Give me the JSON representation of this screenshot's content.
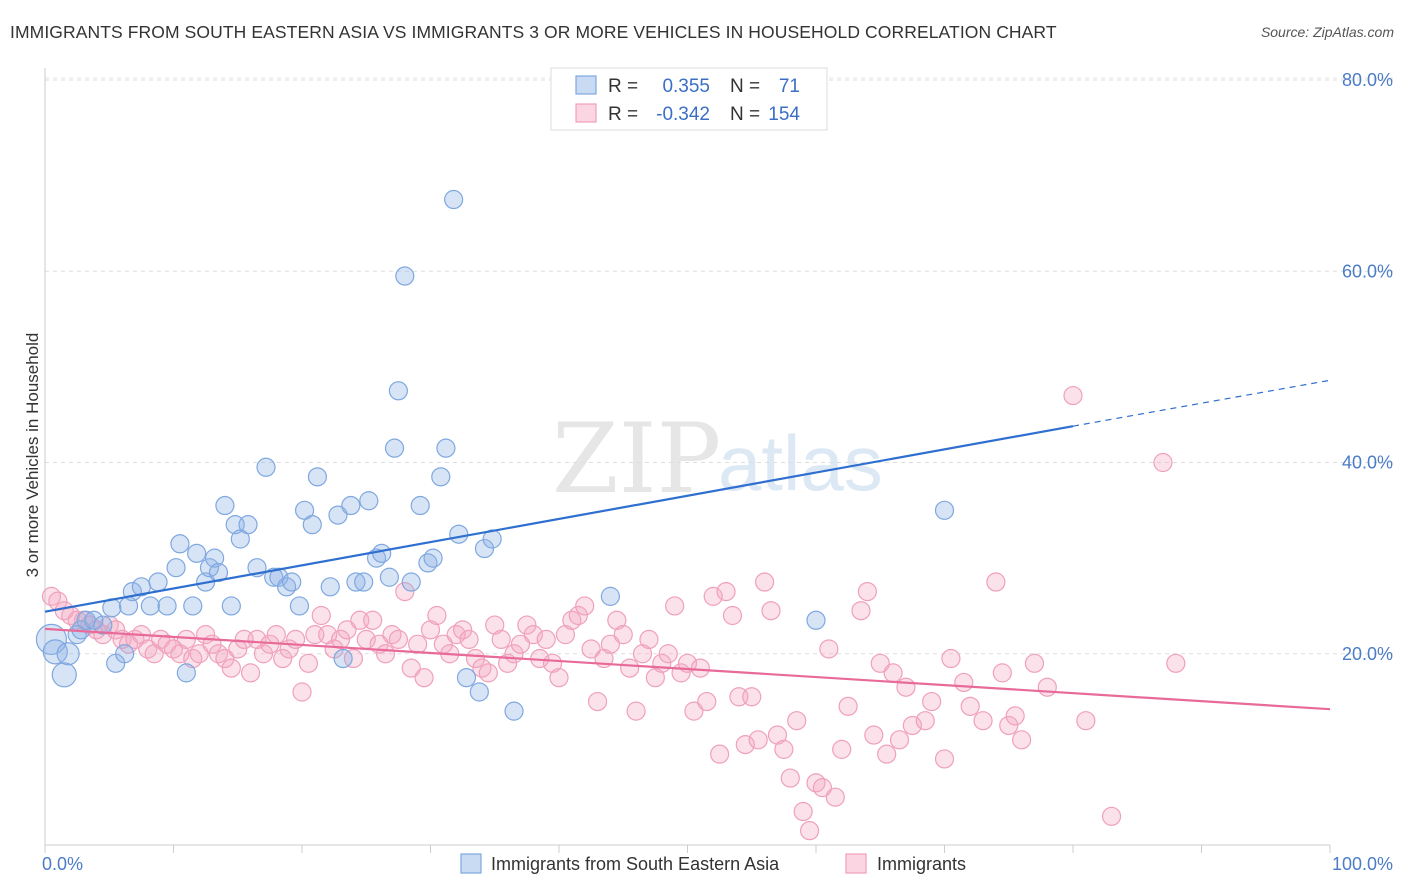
{
  "title": "IMMIGRANTS FROM SOUTH EASTERN ASIA VS IMMIGRANTS 3 OR MORE VEHICLES IN HOUSEHOLD CORRELATION CHART",
  "source": "Source: ZipAtlas.com",
  "watermark": {
    "zip": "ZIP",
    "atlas": "atlas"
  },
  "legend_top": {
    "r_label": "R =",
    "n_label": "N =",
    "rows": [
      {
        "r": "0.355",
        "n": "71",
        "color": "#7fa8e0"
      },
      {
        "r": "-0.342",
        "n": "154",
        "color": "#f0a0ba"
      }
    ]
  },
  "legend_bottom": [
    {
      "label": "Immigrants from South Eastern Asia",
      "color": "#7fa8e0"
    },
    {
      "label": "Immigrants",
      "color": "#f0a0ba"
    }
  ],
  "chart_data": {
    "type": "scatter",
    "xlabel": "",
    "ylabel": "3 or more Vehicles in Household",
    "xlim": [
      0,
      100
    ],
    "ylim": [
      0,
      80
    ],
    "x_ticks": [
      {
        "value": 0,
        "label": "0.0%"
      },
      {
        "value": 100,
        "label": "100.0%"
      }
    ],
    "y_ticks": [
      {
        "value": 20,
        "label": "20.0%"
      },
      {
        "value": 40,
        "label": "40.0%"
      },
      {
        "value": 60,
        "label": "60.0%"
      },
      {
        "value": 80,
        "label": "80.0%"
      }
    ],
    "grid": true,
    "series": [
      {
        "name": "Immigrants from South Eastern Asia",
        "color": "#7fa8e0",
        "trend": {
          "x0": 0,
          "y0": 24.4,
          "x1": 80,
          "y1": 43.8,
          "dashed_to": 100,
          "dashed_y": 48.6
        },
        "points": [
          [
            0.5,
            21.5
          ],
          [
            0.8,
            20.2
          ],
          [
            1.5,
            17.8
          ],
          [
            1.8,
            20.0
          ],
          [
            2.5,
            22.0
          ],
          [
            2.8,
            22.5
          ],
          [
            3.2,
            23.5
          ],
          [
            3.8,
            23.5
          ],
          [
            4.5,
            23.0
          ],
          [
            5.2,
            24.8
          ],
          [
            5.5,
            19.0
          ],
          [
            6.2,
            20.0
          ],
          [
            6.5,
            25.0
          ],
          [
            6.8,
            26.5
          ],
          [
            7.5,
            27.0
          ],
          [
            8.2,
            25.0
          ],
          [
            8.8,
            27.5
          ],
          [
            9.5,
            25.0
          ],
          [
            10.2,
            29.0
          ],
          [
            10.5,
            31.5
          ],
          [
            11.0,
            18.0
          ],
          [
            11.5,
            25.0
          ],
          [
            11.8,
            30.5
          ],
          [
            12.5,
            27.5
          ],
          [
            12.8,
            29.0
          ],
          [
            13.2,
            30.0
          ],
          [
            13.5,
            28.5
          ],
          [
            14.0,
            35.5
          ],
          [
            14.5,
            25.0
          ],
          [
            14.8,
            33.5
          ],
          [
            15.2,
            32.0
          ],
          [
            15.8,
            33.5
          ],
          [
            16.5,
            29.0
          ],
          [
            17.2,
            39.5
          ],
          [
            17.8,
            28.0
          ],
          [
            18.2,
            28.0
          ],
          [
            18.8,
            27.0
          ],
          [
            19.2,
            27.5
          ],
          [
            19.8,
            25.0
          ],
          [
            20.2,
            35.0
          ],
          [
            20.8,
            33.5
          ],
          [
            21.2,
            38.5
          ],
          [
            22.2,
            27.0
          ],
          [
            22.8,
            34.5
          ],
          [
            23.2,
            19.5
          ],
          [
            23.8,
            35.5
          ],
          [
            24.2,
            27.5
          ],
          [
            24.8,
            27.5
          ],
          [
            25.2,
            36.0
          ],
          [
            25.8,
            30.0
          ],
          [
            26.2,
            30.5
          ],
          [
            26.8,
            28.0
          ],
          [
            27.2,
            41.5
          ],
          [
            27.5,
            47.5
          ],
          [
            28.0,
            59.5
          ],
          [
            28.5,
            27.5
          ],
          [
            29.2,
            35.5
          ],
          [
            29.8,
            29.5
          ],
          [
            30.2,
            30.0
          ],
          [
            30.8,
            38.5
          ],
          [
            31.2,
            41.5
          ],
          [
            31.8,
            67.5
          ],
          [
            32.2,
            32.5
          ],
          [
            32.8,
            17.5
          ],
          [
            33.8,
            16.0
          ],
          [
            34.2,
            31.0
          ],
          [
            34.8,
            32.0
          ],
          [
            36.5,
            14.0
          ],
          [
            44.0,
            26.0
          ],
          [
            60.0,
            23.5
          ],
          [
            70.0,
            35.0
          ]
        ]
      },
      {
        "name": "Immigrants",
        "color": "#f0a0ba",
        "trend": {
          "x0": 0,
          "y0": 22.6,
          "x1": 100,
          "y1": 14.2
        },
        "points": [
          [
            0.5,
            26.0
          ],
          [
            1.0,
            25.5
          ],
          [
            1.5,
            24.5
          ],
          [
            2.0,
            24.0
          ],
          [
            2.5,
            23.5
          ],
          [
            3.0,
            23.5
          ],
          [
            3.5,
            23.0
          ],
          [
            4.0,
            22.5
          ],
          [
            4.5,
            22.0
          ],
          [
            5.0,
            23.0
          ],
          [
            5.5,
            22.5
          ],
          [
            6.0,
            21.5
          ],
          [
            6.5,
            21.0
          ],
          [
            7.0,
            21.5
          ],
          [
            7.5,
            22.0
          ],
          [
            8.0,
            20.5
          ],
          [
            8.5,
            20.0
          ],
          [
            9.0,
            21.5
          ],
          [
            9.5,
            21.0
          ],
          [
            10.0,
            20.5
          ],
          [
            10.5,
            20.0
          ],
          [
            11.0,
            21.5
          ],
          [
            11.5,
            19.5
          ],
          [
            12.0,
            20.0
          ],
          [
            12.5,
            22.0
          ],
          [
            13.0,
            21.0
          ],
          [
            13.5,
            20.0
          ],
          [
            14.0,
            19.5
          ],
          [
            14.5,
            18.5
          ],
          [
            15.0,
            20.5
          ],
          [
            15.5,
            21.5
          ],
          [
            16.0,
            18.0
          ],
          [
            16.5,
            21.5
          ],
          [
            17.0,
            20.0
          ],
          [
            17.5,
            21.0
          ],
          [
            18.0,
            22.0
          ],
          [
            18.5,
            19.5
          ],
          [
            19.0,
            20.5
          ],
          [
            19.5,
            21.5
          ],
          [
            20.0,
            16.0
          ],
          [
            20.5,
            19.0
          ],
          [
            21.0,
            22.0
          ],
          [
            21.5,
            24.0
          ],
          [
            22.0,
            22.0
          ],
          [
            22.5,
            20.5
          ],
          [
            23.0,
            21.5
          ],
          [
            23.5,
            22.5
          ],
          [
            24.0,
            19.5
          ],
          [
            24.5,
            23.5
          ],
          [
            25.0,
            21.5
          ],
          [
            25.5,
            23.5
          ],
          [
            26.0,
            21.0
          ],
          [
            26.5,
            20.0
          ],
          [
            27.0,
            22.0
          ],
          [
            27.5,
            21.5
          ],
          [
            28.0,
            26.5
          ],
          [
            28.5,
            18.5
          ],
          [
            29.0,
            21.0
          ],
          [
            29.5,
            17.5
          ],
          [
            30.0,
            22.5
          ],
          [
            30.5,
            24.0
          ],
          [
            31.0,
            21.0
          ],
          [
            31.5,
            20.0
          ],
          [
            32.0,
            22.0
          ],
          [
            32.5,
            22.5
          ],
          [
            33.0,
            21.5
          ],
          [
            33.5,
            19.5
          ],
          [
            34.0,
            18.5
          ],
          [
            34.5,
            18.0
          ],
          [
            35.0,
            23.0
          ],
          [
            35.5,
            21.5
          ],
          [
            36.0,
            19.0
          ],
          [
            36.5,
            20.0
          ],
          [
            37.0,
            21.0
          ],
          [
            37.5,
            23.0
          ],
          [
            38.0,
            22.0
          ],
          [
            38.5,
            19.5
          ],
          [
            39.0,
            21.5
          ],
          [
            39.5,
            19.0
          ],
          [
            40.0,
            17.5
          ],
          [
            40.5,
            22.0
          ],
          [
            41.0,
            23.5
          ],
          [
            41.5,
            24.0
          ],
          [
            42.0,
            25.0
          ],
          [
            42.5,
            20.5
          ],
          [
            43.0,
            15.0
          ],
          [
            43.5,
            19.5
          ],
          [
            44.0,
            21.0
          ],
          [
            44.5,
            23.5
          ],
          [
            45.0,
            22.0
          ],
          [
            45.5,
            18.5
          ],
          [
            46.0,
            14.0
          ],
          [
            46.5,
            20.0
          ],
          [
            47.0,
            21.5
          ],
          [
            47.5,
            17.5
          ],
          [
            48.0,
            19.0
          ],
          [
            48.5,
            20.0
          ],
          [
            49.0,
            25.0
          ],
          [
            49.5,
            18.0
          ],
          [
            50.0,
            19.0
          ],
          [
            50.5,
            14.0
          ],
          [
            51.0,
            18.5
          ],
          [
            51.5,
            15.0
          ],
          [
            52.0,
            26.0
          ],
          [
            52.5,
            9.5
          ],
          [
            53.0,
            26.5
          ],
          [
            53.5,
            24.0
          ],
          [
            54.0,
            15.5
          ],
          [
            54.5,
            10.5
          ],
          [
            55.0,
            15.5
          ],
          [
            55.5,
            11.0
          ],
          [
            56.0,
            27.5
          ],
          [
            56.5,
            24.5
          ],
          [
            57.0,
            11.5
          ],
          [
            57.5,
            10.0
          ],
          [
            58.0,
            7.0
          ],
          [
            58.5,
            13.0
          ],
          [
            59.0,
            3.5
          ],
          [
            59.5,
            1.5
          ],
          [
            60.0,
            6.5
          ],
          [
            60.5,
            6.0
          ],
          [
            61.0,
            20.5
          ],
          [
            61.5,
            5.0
          ],
          [
            62.0,
            10.0
          ],
          [
            62.5,
            14.5
          ],
          [
            63.5,
            24.5
          ],
          [
            64.0,
            26.5
          ],
          [
            64.5,
            11.5
          ],
          [
            65.0,
            19.0
          ],
          [
            65.5,
            9.5
          ],
          [
            66.0,
            18.0
          ],
          [
            66.5,
            11.0
          ],
          [
            67.0,
            16.5
          ],
          [
            67.5,
            12.5
          ],
          [
            68.5,
            13.0
          ],
          [
            69.0,
            15.0
          ],
          [
            70.0,
            9.0
          ],
          [
            70.5,
            19.5
          ],
          [
            71.5,
            17.0
          ],
          [
            72.0,
            14.5
          ],
          [
            73.0,
            13.0
          ],
          [
            74.0,
            27.5
          ],
          [
            74.5,
            18.0
          ],
          [
            75.0,
            12.5
          ],
          [
            75.5,
            13.5
          ],
          [
            76.0,
            11.0
          ],
          [
            77.0,
            19.0
          ],
          [
            78.0,
            16.5
          ],
          [
            80.0,
            47.0
          ],
          [
            81.0,
            13.0
          ],
          [
            83.0,
            3.0
          ],
          [
            87.0,
            40.0
          ],
          [
            88.0,
            19.0
          ]
        ]
      }
    ]
  }
}
